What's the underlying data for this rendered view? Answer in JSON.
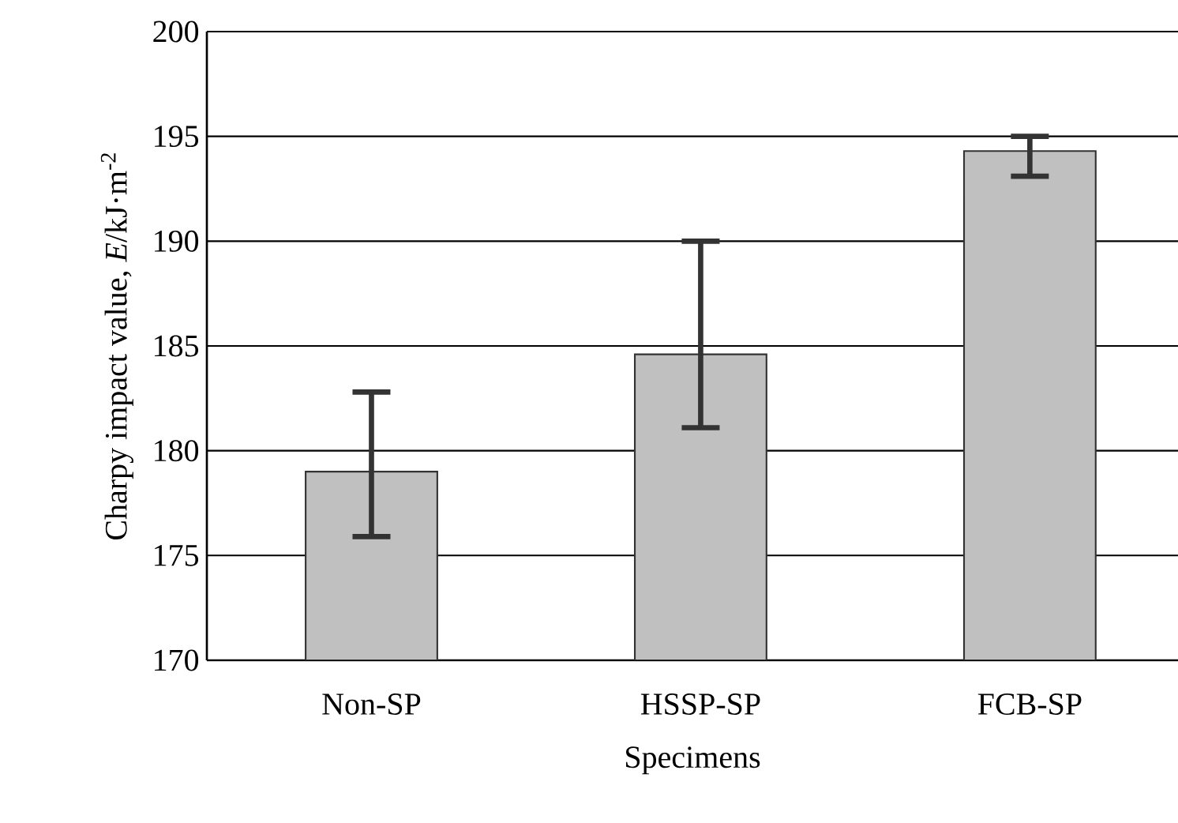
{
  "chart_data": {
    "type": "bar",
    "xlabel": "Specimens",
    "ylabel": "Charpy impact value, *E*/kJ·m$^{-2}$",
    "categories": [
      "Non-SP",
      "HSSP-SP",
      "FCB-SP"
    ],
    "values": [
      179.0,
      184.6,
      194.3
    ],
    "errors": [
      [
        175.9,
        182.8
      ],
      [
        181.1,
        190.0
      ],
      [
        193.1,
        195.0
      ]
    ],
    "color": "#c0c0c0",
    "ylim": [
      170,
      200
    ],
    "yticks": [
      170,
      175,
      180,
      185,
      190,
      195,
      200
    ],
    "grid": "y"
  }
}
